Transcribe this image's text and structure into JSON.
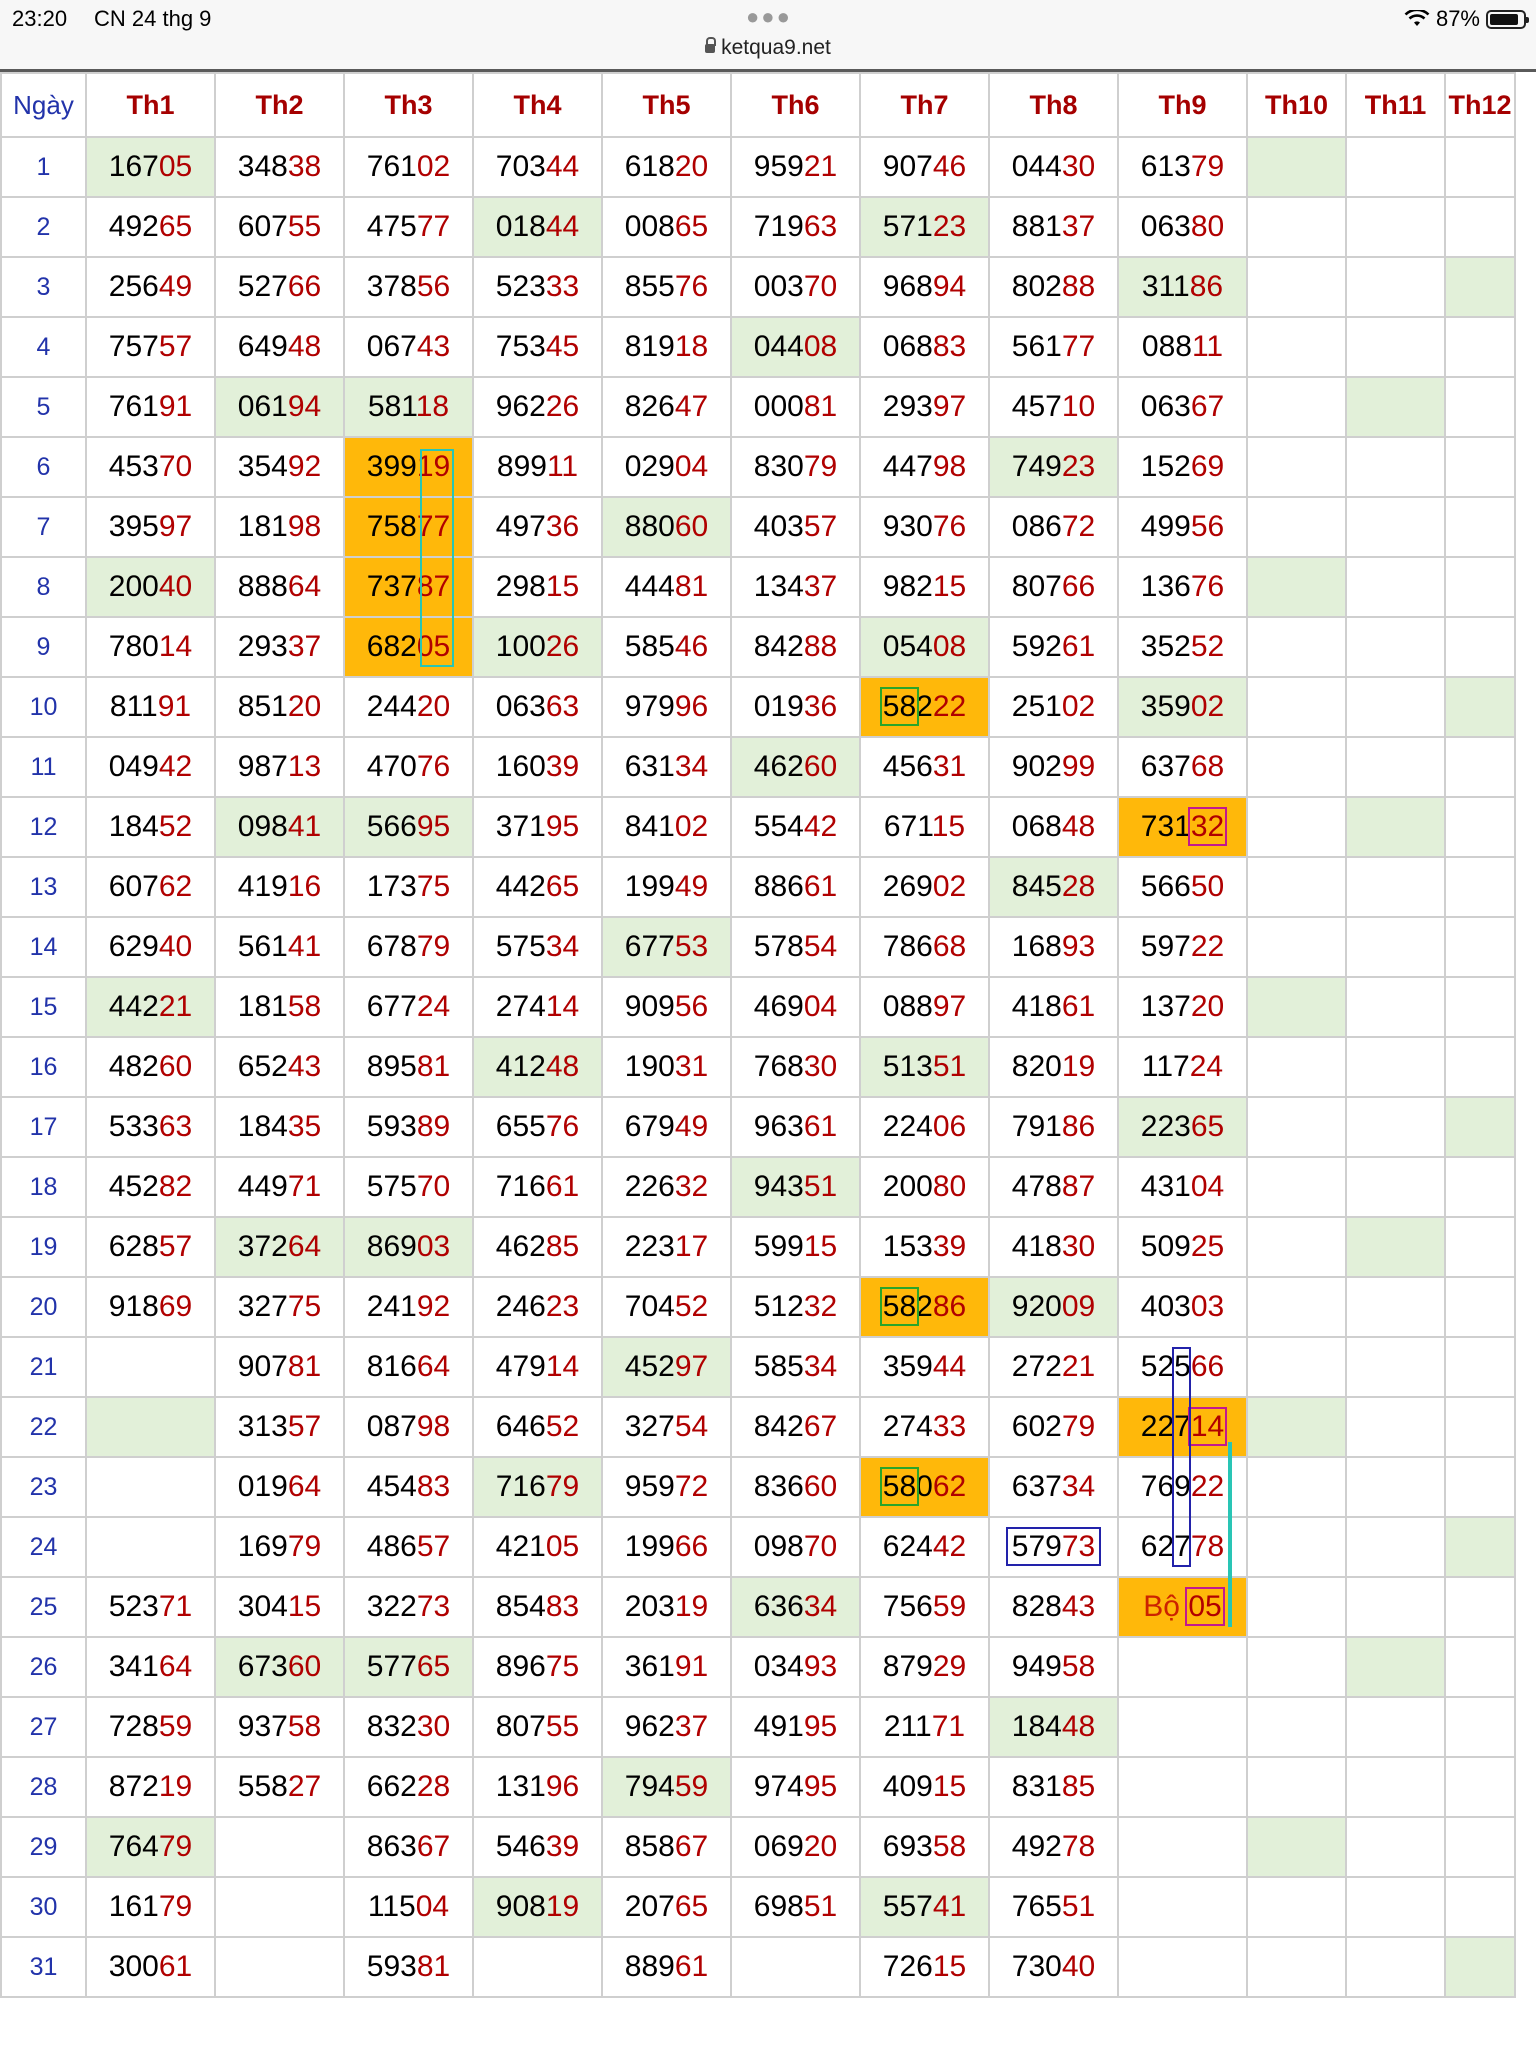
{
  "status_bar": {
    "time": "23:20",
    "date": "CN 24 thg 9",
    "url": "ketqua9.net",
    "battery": "87%",
    "battery_level": 0.87
  },
  "table": {
    "day_header": "Ngày",
    "columns": [
      "Th1",
      "Th2",
      "Th3",
      "Th4",
      "Th5",
      "Th6",
      "Th7",
      "Th8",
      "Th9",
      "Th10",
      "Th11",
      "Th12"
    ],
    "rows": [
      {
        "day": "1",
        "cells": [
          "16705",
          "34838",
          "76102",
          "70344",
          "61820",
          "95921",
          "90746",
          "04430",
          "61379",
          "",
          "",
          ""
        ]
      },
      {
        "day": "2",
        "cells": [
          "49265",
          "60755",
          "47577",
          "01844",
          "00865",
          "71963",
          "57123",
          "88137",
          "06380",
          "",
          "",
          ""
        ]
      },
      {
        "day": "3",
        "cells": [
          "25649",
          "52766",
          "37856",
          "52333",
          "85576",
          "00370",
          "96894",
          "80288",
          "31186",
          "",
          "",
          ""
        ]
      },
      {
        "day": "4",
        "cells": [
          "75757",
          "64948",
          "06743",
          "75345",
          "81918",
          "04408",
          "06883",
          "56177",
          "08811",
          "",
          "",
          ""
        ]
      },
      {
        "day": "5",
        "cells": [
          "76191",
          "06194",
          "58118",
          "96226",
          "82647",
          "00081",
          "29397",
          "45710",
          "06367",
          "",
          "",
          ""
        ]
      },
      {
        "day": "6",
        "cells": [
          "45370",
          "35492",
          "39919",
          "89911",
          "02904",
          "83079",
          "44798",
          "74923",
          "15269",
          "",
          "",
          ""
        ]
      },
      {
        "day": "7",
        "cells": [
          "39597",
          "18198",
          "75877",
          "49736",
          "88060",
          "40357",
          "93076",
          "08672",
          "49956",
          "",
          "",
          ""
        ]
      },
      {
        "day": "8",
        "cells": [
          "20040",
          "88864",
          "73787",
          "29815",
          "44481",
          "13437",
          "98215",
          "80766",
          "13676",
          "",
          "",
          ""
        ]
      },
      {
        "day": "9",
        "cells": [
          "78014",
          "29337",
          "68205",
          "10026",
          "58546",
          "84288",
          "05408",
          "59261",
          "35252",
          "",
          "",
          ""
        ]
      },
      {
        "day": "10",
        "cells": [
          "81191",
          "85120",
          "24420",
          "06363",
          "97996",
          "01936",
          "58222",
          "25102",
          "35902",
          "",
          "",
          ""
        ]
      },
      {
        "day": "11",
        "cells": [
          "04942",
          "98713",
          "47076",
          "16039",
          "63134",
          "46260",
          "45631",
          "90299",
          "63768",
          "",
          "",
          ""
        ]
      },
      {
        "day": "12",
        "cells": [
          "18452",
          "09841",
          "56695",
          "37195",
          "84102",
          "55442",
          "67115",
          "06848",
          "73132",
          "",
          "",
          ""
        ]
      },
      {
        "day": "13",
        "cells": [
          "60762",
          "41916",
          "17375",
          "44265",
          "19949",
          "88661",
          "26902",
          "84528",
          "56650",
          "",
          "",
          ""
        ]
      },
      {
        "day": "14",
        "cells": [
          "62940",
          "56141",
          "67879",
          "57534",
          "67753",
          "57854",
          "78668",
          "16893",
          "59722",
          "",
          "",
          ""
        ]
      },
      {
        "day": "15",
        "cells": [
          "44221",
          "18158",
          "67724",
          "27414",
          "90956",
          "46904",
          "08897",
          "41861",
          "13720",
          "",
          "",
          ""
        ]
      },
      {
        "day": "16",
        "cells": [
          "48260",
          "65243",
          "89581",
          "41248",
          "19031",
          "76830",
          "51351",
          "82019",
          "11724",
          "",
          "",
          ""
        ]
      },
      {
        "day": "17",
        "cells": [
          "53363",
          "18435",
          "59389",
          "65576",
          "67949",
          "96361",
          "22406",
          "79186",
          "22365",
          "",
          "",
          ""
        ]
      },
      {
        "day": "18",
        "cells": [
          "45282",
          "44971",
          "57570",
          "71661",
          "22632",
          "94351",
          "20080",
          "47887",
          "43104",
          "",
          "",
          ""
        ]
      },
      {
        "day": "19",
        "cells": [
          "62857",
          "37264",
          "86903",
          "46285",
          "22317",
          "59915",
          "15339",
          "41830",
          "50925",
          "",
          "",
          ""
        ]
      },
      {
        "day": "20",
        "cells": [
          "91869",
          "32775",
          "24192",
          "24623",
          "70452",
          "51232",
          "58286",
          "92009",
          "40303",
          "",
          "",
          ""
        ]
      },
      {
        "day": "21",
        "cells": [
          "",
          "90781",
          "81664",
          "47914",
          "45297",
          "58534",
          "35944",
          "27221",
          "52566",
          "",
          "",
          ""
        ]
      },
      {
        "day": "22",
        "cells": [
          "",
          "31357",
          "08798",
          "64652",
          "32754",
          "84267",
          "27433",
          "60279",
          "22714",
          "",
          "",
          ""
        ]
      },
      {
        "day": "23",
        "cells": [
          "",
          "01964",
          "45483",
          "71679",
          "95972",
          "83660",
          "58062",
          "63734",
          "76922",
          "",
          "",
          ""
        ]
      },
      {
        "day": "24",
        "cells": [
          "",
          "16979",
          "48657",
          "42105",
          "19966",
          "09870",
          "62442",
          "57973",
          "62778",
          "",
          "",
          ""
        ]
      },
      {
        "day": "25",
        "cells": [
          "52371",
          "30415",
          "32273",
          "85483",
          "20319",
          "63634",
          "75659",
          "82843",
          "Bộ 05",
          "",
          "",
          ""
        ]
      },
      {
        "day": "26",
        "cells": [
          "34164",
          "67360",
          "57765",
          "89675",
          "36191",
          "03493",
          "87929",
          "94958",
          "",
          "",
          "",
          ""
        ]
      },
      {
        "day": "27",
        "cells": [
          "72859",
          "93758",
          "83230",
          "80755",
          "96237",
          "49195",
          "21171",
          "18448",
          "",
          "",
          "",
          ""
        ]
      },
      {
        "day": "28",
        "cells": [
          "87219",
          "55827",
          "66228",
          "13196",
          "79459",
          "97495",
          "40915",
          "83185",
          "",
          "",
          "",
          ""
        ]
      },
      {
        "day": "29",
        "cells": [
          "76479",
          "",
          "86367",
          "54639",
          "85867",
          "06920",
          "69358",
          "49278",
          "",
          "",
          "",
          ""
        ]
      },
      {
        "day": "30",
        "cells": [
          "16179",
          "",
          "11504",
          "90819",
          "20765",
          "69851",
          "55741",
          "76551",
          "",
          "",
          "",
          ""
        ]
      },
      {
        "day": "31",
        "cells": [
          "30061",
          "",
          "59381",
          "",
          "88961",
          "",
          "72615",
          "73040",
          "",
          "",
          "",
          ""
        ]
      }
    ],
    "green_cells": [
      [
        1,
        1
      ],
      [
        1,
        10
      ],
      [
        2,
        4
      ],
      [
        2,
        7
      ],
      [
        3,
        9
      ],
      [
        3,
        12
      ],
      [
        4,
        6
      ],
      [
        5,
        2
      ],
      [
        5,
        3
      ],
      [
        5,
        11
      ],
      [
        6,
        8
      ],
      [
        7,
        5
      ],
      [
        8,
        1
      ],
      [
        8,
        10
      ],
      [
        9,
        4
      ],
      [
        9,
        7
      ],
      [
        10,
        9
      ],
      [
        10,
        12
      ],
      [
        11,
        6
      ],
      [
        12,
        2
      ],
      [
        12,
        3
      ],
      [
        12,
        11
      ],
      [
        13,
        8
      ],
      [
        14,
        5
      ],
      [
        15,
        1
      ],
      [
        15,
        10
      ],
      [
        16,
        4
      ],
      [
        16,
        7
      ],
      [
        17,
        9
      ],
      [
        17,
        12
      ],
      [
        18,
        6
      ],
      [
        19,
        2
      ],
      [
        19,
        3
      ],
      [
        19,
        11
      ],
      [
        20,
        8
      ],
      [
        21,
        5
      ],
      [
        22,
        1
      ],
      [
        22,
        10
      ],
      [
        23,
        4
      ],
      [
        24,
        12
      ],
      [
        25,
        6
      ],
      [
        26,
        2
      ],
      [
        26,
        3
      ],
      [
        26,
        11
      ],
      [
        27,
        8
      ],
      [
        28,
        5
      ],
      [
        29,
        1
      ],
      [
        29,
        10
      ],
      [
        30,
        4
      ],
      [
        30,
        7
      ],
      [
        31,
        12
      ]
    ],
    "orange_cells": [
      [
        6,
        3
      ],
      [
        7,
        3
      ],
      [
        8,
        3
      ],
      [
        9,
        3
      ],
      [
        10,
        7
      ],
      [
        12,
        9
      ],
      [
        20,
        7
      ],
      [
        22,
        9
      ],
      [
        23,
        7
      ],
      [
        25,
        9
      ]
    ],
    "colors": {
      "header": "#a50000",
      "day": "#2233aa",
      "digits": "#b00000",
      "green": "#e2f0d9",
      "orange": "#ffb80a"
    }
  }
}
